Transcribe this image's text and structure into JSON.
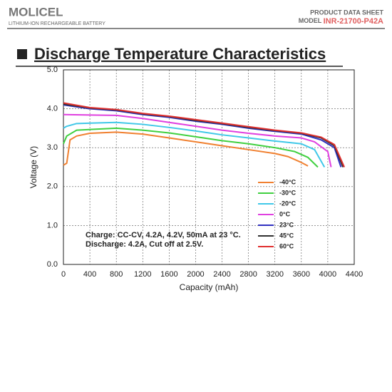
{
  "header": {
    "logo": "MOLICEL",
    "tagline": "LITHIUM-ION RECHARGEABLE BATTERY",
    "doc_type": "PRODUCT DATA SHEET",
    "model_label": "MODEL",
    "model": "INR-21700-P42A"
  },
  "chart_data": {
    "type": "line",
    "title": "Discharge Temperature Characteristics",
    "x_label": "Capacity (mAh)",
    "y_label": "Voltage (V)",
    "grid": true,
    "annotations": [
      "Charge: CC-CV, 4.2A, 4.2V, 50mA at 23 °C.",
      "Discharge: 4.2A, Cut off at 2.5V."
    ],
    "xlim": [
      0,
      4400
    ],
    "xticks": [
      0,
      400,
      800,
      1200,
      1600,
      2000,
      2400,
      2800,
      3200,
      3600,
      4000,
      4400
    ],
    "ylim": [
      0,
      5
    ],
    "yticks": [
      {
        "value": 0,
        "label": "0.0"
      },
      {
        "value": 1,
        "label": "1.0"
      },
      {
        "value": 2,
        "label": "2.0"
      },
      {
        "value": 3,
        "label": "3.0"
      },
      {
        "value": 4,
        "label": "4.0"
      },
      {
        "value": 5,
        "label": "5.0"
      }
    ],
    "series": [
      {
        "name": "-40°C",
        "color": "#f08030",
        "x": [
          0,
          50,
          100,
          200,
          400,
          800,
          1200,
          1600,
          2000,
          2400,
          2800,
          3200,
          3400,
          3600,
          3700
        ],
        "values": [
          2.55,
          2.6,
          3.2,
          3.3,
          3.37,
          3.4,
          3.35,
          3.25,
          3.15,
          3.05,
          2.95,
          2.85,
          2.77,
          2.62,
          2.53
        ]
      },
      {
        "name": "-30°C",
        "color": "#40d040",
        "x": [
          0,
          50,
          200,
          800,
          1200,
          1600,
          2000,
          2400,
          2800,
          3200,
          3500,
          3700,
          3850
        ],
        "values": [
          3.1,
          3.3,
          3.45,
          3.5,
          3.45,
          3.38,
          3.28,
          3.18,
          3.1,
          3.0,
          2.9,
          2.75,
          2.5
        ]
      },
      {
        "name": "-20°C",
        "color": "#40c8e8",
        "x": [
          0,
          50,
          200,
          800,
          1200,
          1600,
          2000,
          2400,
          2800,
          3200,
          3600,
          3800,
          3950
        ],
        "values": [
          3.5,
          3.55,
          3.62,
          3.65,
          3.6,
          3.52,
          3.43,
          3.33,
          3.25,
          3.17,
          3.1,
          2.95,
          2.5
        ]
      },
      {
        "name": "0°C",
        "color": "#e040e0",
        "x": [
          0,
          800,
          1200,
          1600,
          2000,
          2400,
          2800,
          3200,
          3600,
          3800,
          4000,
          4050
        ],
        "values": [
          3.85,
          3.83,
          3.75,
          3.65,
          3.55,
          3.45,
          3.37,
          3.3,
          3.25,
          3.15,
          2.9,
          2.5
        ]
      },
      {
        "name": "23°C",
        "color": "#3030c0",
        "x": [
          0,
          400,
          800,
          1200,
          1600,
          2000,
          2400,
          2800,
          3200,
          3600,
          3900,
          4100,
          4200
        ],
        "values": [
          4.1,
          4.0,
          3.95,
          3.85,
          3.78,
          3.68,
          3.6,
          3.5,
          3.42,
          3.35,
          3.2,
          3.0,
          2.5
        ]
      },
      {
        "name": "45°C",
        "color": "#303030",
        "x": [
          0,
          400,
          800,
          1200,
          1600,
          2000,
          2400,
          2800,
          3200,
          3600,
          3900,
          4100,
          4230
        ],
        "values": [
          4.12,
          4.02,
          3.97,
          3.87,
          3.8,
          3.7,
          3.62,
          3.52,
          3.44,
          3.37,
          3.25,
          3.05,
          2.5
        ]
      },
      {
        "name": "60°C",
        "color": "#e03030",
        "x": [
          0,
          400,
          800,
          1200,
          1600,
          2000,
          2400,
          2800,
          3200,
          3600,
          3900,
          4100,
          4250
        ],
        "values": [
          4.15,
          4.03,
          3.98,
          3.88,
          3.81,
          3.72,
          3.63,
          3.54,
          3.45,
          3.38,
          3.27,
          3.08,
          2.5
        ]
      }
    ]
  }
}
